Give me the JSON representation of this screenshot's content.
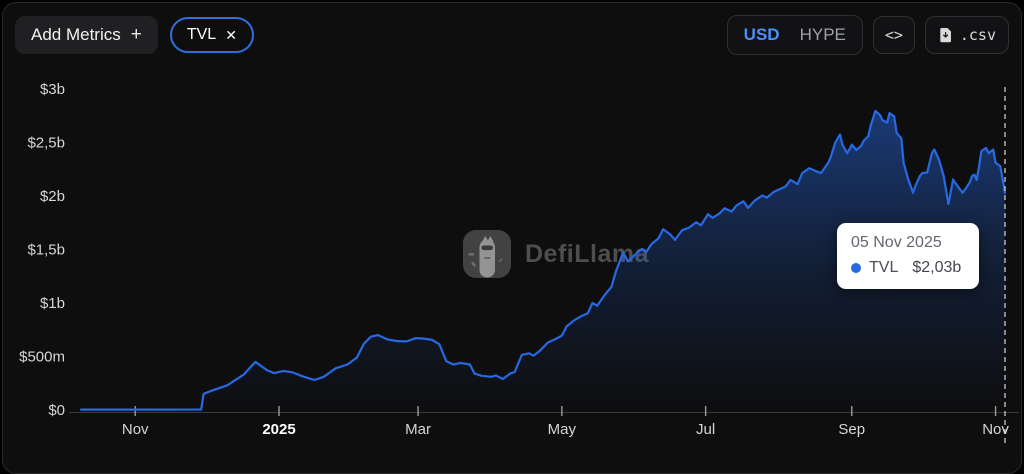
{
  "header": {
    "add_metrics_label": "Add Metrics",
    "add_metrics_plus": "+",
    "metric_chip": {
      "label": "TVL",
      "close": "✕"
    },
    "currency_toggle": {
      "options": [
        "USD",
        "HYPE"
      ],
      "selected": "USD"
    },
    "embed_label": "<>",
    "csv_label": ".csv"
  },
  "watermark": {
    "text": "DefiLlama"
  },
  "tooltip": {
    "date": "05 Nov 2025",
    "series": "TVL",
    "value": "$2,03b"
  },
  "colors": {
    "line_blue": "#2769e3",
    "chip_border_blue": "#2f6fde",
    "usd_blue": "#4b8ef8",
    "axis_label": "#d6d6d6",
    "tooltip_bg": "#ffffff"
  },
  "chart_data": {
    "type": "area",
    "title": "TVL (USD)",
    "legend": [
      "TVL"
    ],
    "grid": false,
    "x_range": [
      "2024-10-09",
      "2025-11-05"
    ],
    "ylim": [
      0,
      3000
    ],
    "y_unit": "USD millions",
    "y_ticks": [
      {
        "label": "$0",
        "value": 0
      },
      {
        "label": "$500m",
        "value": 500
      },
      {
        "label": "$1b",
        "value": 1000
      },
      {
        "label": "$1,5b",
        "value": 1500
      },
      {
        "label": "$2b",
        "value": 2000
      },
      {
        "label": "$2,5b",
        "value": 2500
      },
      {
        "label": "$3b",
        "value": 3000
      }
    ],
    "x_ticks": [
      {
        "label": "Nov",
        "date": "2024-11-01",
        "bold": false
      },
      {
        "label": "2025",
        "date": "2025-01-01",
        "bold": true
      },
      {
        "label": "Mar",
        "date": "2025-03-01",
        "bold": false
      },
      {
        "label": "May",
        "date": "2025-05-01",
        "bold": false
      },
      {
        "label": "Jul",
        "date": "2025-07-01",
        "bold": false
      },
      {
        "label": "Sep",
        "date": "2025-09-01",
        "bold": false
      },
      {
        "label": "Nov",
        "date": "2025-11-01",
        "bold": false
      }
    ],
    "marker": {
      "date": "2025-11-05",
      "label": "05 Nov 2025",
      "value": 2030,
      "value_label": "$2,03b"
    },
    "series": [
      {
        "name": "TVL",
        "color": "#2769e3",
        "points": [
          [
            "2024-10-09",
            4
          ],
          [
            "2024-11-01",
            4
          ],
          [
            "2024-11-29",
            5
          ],
          [
            "2024-11-30",
            150
          ],
          [
            "2024-12-04",
            185
          ],
          [
            "2024-12-10",
            230
          ],
          [
            "2024-12-17",
            330
          ],
          [
            "2024-12-22",
            450
          ],
          [
            "2024-12-27",
            370
          ],
          [
            "2024-12-30",
            345
          ],
          [
            "2025-01-03",
            365
          ],
          [
            "2025-01-07",
            350
          ],
          [
            "2025-01-11",
            315
          ],
          [
            "2025-01-16",
            280
          ],
          [
            "2025-01-20",
            310
          ],
          [
            "2025-01-25",
            390
          ],
          [
            "2025-01-30",
            425
          ],
          [
            "2025-02-03",
            490
          ],
          [
            "2025-02-06",
            620
          ],
          [
            "2025-02-09",
            685
          ],
          [
            "2025-02-12",
            700
          ],
          [
            "2025-02-16",
            660
          ],
          [
            "2025-02-20",
            645
          ],
          [
            "2025-02-24",
            640
          ],
          [
            "2025-02-28",
            672
          ],
          [
            "2025-03-03",
            668
          ],
          [
            "2025-03-07",
            655
          ],
          [
            "2025-03-10",
            615
          ],
          [
            "2025-03-13",
            455
          ],
          [
            "2025-03-16",
            425
          ],
          [
            "2025-03-19",
            440
          ],
          [
            "2025-03-23",
            425
          ],
          [
            "2025-03-25",
            340
          ],
          [
            "2025-03-28",
            320
          ],
          [
            "2025-04-01",
            310
          ],
          [
            "2025-04-03",
            322
          ],
          [
            "2025-04-06",
            290
          ],
          [
            "2025-04-09",
            340
          ],
          [
            "2025-04-11",
            355
          ],
          [
            "2025-04-14",
            515
          ],
          [
            "2025-04-17",
            530
          ],
          [
            "2025-04-19",
            508
          ],
          [
            "2025-04-22",
            560
          ],
          [
            "2025-04-25",
            630
          ],
          [
            "2025-04-28",
            660
          ],
          [
            "2025-05-01",
            695
          ],
          [
            "2025-05-03",
            780
          ],
          [
            "2025-05-06",
            835
          ],
          [
            "2025-05-09",
            875
          ],
          [
            "2025-05-12",
            905
          ],
          [
            "2025-05-14",
            1000
          ],
          [
            "2025-05-16",
            975
          ],
          [
            "2025-05-19",
            1070
          ],
          [
            "2025-05-22",
            1150
          ],
          [
            "2025-05-24",
            1300
          ],
          [
            "2025-05-27",
            1470
          ],
          [
            "2025-05-29",
            1390
          ],
          [
            "2025-06-01",
            1450
          ],
          [
            "2025-06-04",
            1505
          ],
          [
            "2025-06-06",
            1480
          ],
          [
            "2025-06-08",
            1550
          ],
          [
            "2025-06-11",
            1605
          ],
          [
            "2025-06-13",
            1690
          ],
          [
            "2025-06-16",
            1640
          ],
          [
            "2025-06-18",
            1590
          ],
          [
            "2025-06-21",
            1680
          ],
          [
            "2025-06-24",
            1705
          ],
          [
            "2025-06-27",
            1755
          ],
          [
            "2025-06-29",
            1725
          ],
          [
            "2025-07-02",
            1830
          ],
          [
            "2025-07-04",
            1795
          ],
          [
            "2025-07-07",
            1840
          ],
          [
            "2025-07-09",
            1885
          ],
          [
            "2025-07-12",
            1855
          ],
          [
            "2025-07-14",
            1910
          ],
          [
            "2025-07-17",
            1950
          ],
          [
            "2025-07-19",
            1890
          ],
          [
            "2025-07-22",
            1960
          ],
          [
            "2025-07-25",
            2005
          ],
          [
            "2025-07-27",
            1985
          ],
          [
            "2025-07-30",
            2040
          ],
          [
            "2025-08-01",
            2060
          ],
          [
            "2025-08-04",
            2090
          ],
          [
            "2025-08-06",
            2150
          ],
          [
            "2025-08-09",
            2110
          ],
          [
            "2025-08-11",
            2215
          ],
          [
            "2025-08-14",
            2260
          ],
          [
            "2025-08-17",
            2230
          ],
          [
            "2025-08-19",
            2215
          ],
          [
            "2025-08-22",
            2310
          ],
          [
            "2025-08-23",
            2360
          ],
          [
            "2025-08-25",
            2500
          ],
          [
            "2025-08-27",
            2575
          ],
          [
            "2025-08-28",
            2480
          ],
          [
            "2025-08-30",
            2400
          ],
          [
            "2025-08-31",
            2435
          ],
          [
            "2025-09-01",
            2480
          ],
          [
            "2025-09-03",
            2430
          ],
          [
            "2025-09-05",
            2470
          ],
          [
            "2025-09-06",
            2515
          ],
          [
            "2025-09-08",
            2560
          ],
          [
            "2025-09-09",
            2655
          ],
          [
            "2025-09-11",
            2795
          ],
          [
            "2025-09-13",
            2755
          ],
          [
            "2025-09-14",
            2710
          ],
          [
            "2025-09-16",
            2685
          ],
          [
            "2025-09-17",
            2775
          ],
          [
            "2025-09-19",
            2745
          ],
          [
            "2025-09-20",
            2590
          ],
          [
            "2025-09-22",
            2540
          ],
          [
            "2025-09-23",
            2310
          ],
          [
            "2025-09-25",
            2150
          ],
          [
            "2025-09-27",
            2030
          ],
          [
            "2025-09-28",
            2095
          ],
          [
            "2025-09-30",
            2190
          ],
          [
            "2025-10-01",
            2215
          ],
          [
            "2025-10-03",
            2220
          ],
          [
            "2025-10-05",
            2400
          ],
          [
            "2025-10-06",
            2435
          ],
          [
            "2025-10-08",
            2340
          ],
          [
            "2025-10-10",
            2185
          ],
          [
            "2025-10-12",
            1925
          ],
          [
            "2025-10-14",
            2155
          ],
          [
            "2025-10-15",
            2120
          ],
          [
            "2025-10-17",
            2060
          ],
          [
            "2025-10-18",
            2030
          ],
          [
            "2025-10-19",
            2060
          ],
          [
            "2025-10-21",
            2125
          ],
          [
            "2025-10-22",
            2185
          ],
          [
            "2025-10-23",
            2200
          ],
          [
            "2025-10-24",
            2150
          ],
          [
            "2025-10-25",
            2280
          ],
          [
            "2025-10-26",
            2420
          ],
          [
            "2025-10-28",
            2450
          ],
          [
            "2025-10-29",
            2400
          ],
          [
            "2025-10-31",
            2435
          ],
          [
            "2025-11-01",
            2310
          ],
          [
            "2025-11-03",
            2280
          ],
          [
            "2025-11-04",
            2155
          ],
          [
            "2025-11-05",
            2030
          ]
        ]
      }
    ]
  }
}
